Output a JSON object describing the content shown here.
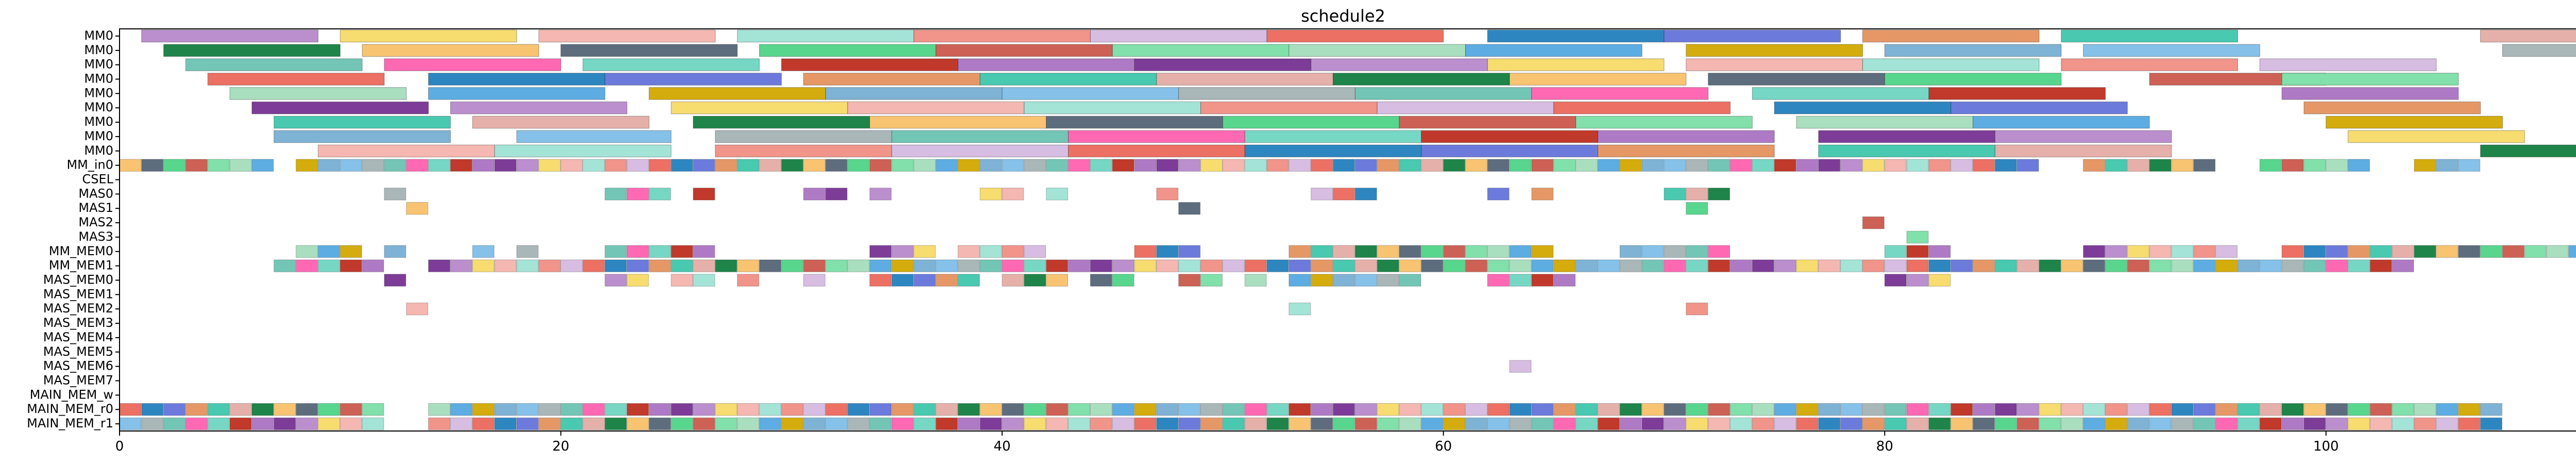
{
  "chart_data": {
    "type": "gantt",
    "title": "schedule2",
    "xlabel": "",
    "ylabel": "",
    "xlim": [
      0,
      116
    ],
    "x_ticks": [
      0,
      20,
      40,
      60,
      80,
      100
    ],
    "grid": false,
    "legend": "none",
    "rows": [
      "MM0",
      "MM0",
      "MM0",
      "MM0",
      "MM0",
      "MM0",
      "MM0",
      "MM0",
      "MM0",
      "MM_in0",
      "CSEL",
      "MAS0",
      "MAS1",
      "MAS2",
      "MAS3",
      "MM_MEM0",
      "MM_MEM1",
      "MAS_MEM0",
      "MAS_MEM1",
      "MAS_MEM2",
      "MAS_MEM3",
      "MAS_MEM4",
      "MAS_MEM5",
      "MAS_MEM6",
      "MAS_MEM7",
      "MAIN_MEM_w",
      "MAIN_MEM_r0",
      "MAIN_MEM_r1"
    ],
    "palette": [
      "#7fb3d5",
      "#f1948a",
      "#82e0aa",
      "#bb8fce",
      "#f8c471",
      "#76d7c4",
      "#e59866",
      "#85c1e9",
      "#d7bde2",
      "#a9dfbf",
      "#f7dc6f",
      "#5d6d7e",
      "#c0392b",
      "#48c9b0",
      "#aab7b8",
      "#ec7063",
      "#5dade2",
      "#f5b7b1",
      "#58d68d",
      "#af7ac5",
      "#e6b0aa",
      "#73c6b6",
      "#2e86c1",
      "#d4ac0d",
      "#a3e4d7",
      "#cd6155",
      "#7d3c98",
      "#1e8449",
      "#ff69b4",
      "#6c7bdb"
    ],
    "bars": [
      {
        "row": 0,
        "start": 1,
        "end": 9
      },
      {
        "row": 0,
        "start": 10,
        "end": 18
      },
      {
        "row": 0,
        "start": 19,
        "end": 27
      },
      {
        "row": 0,
        "start": 28,
        "end": 36
      },
      {
        "row": 0,
        "start": 36,
        "end": 44
      },
      {
        "row": 0,
        "start": 44,
        "end": 52
      },
      {
        "row": 0,
        "start": 52,
        "end": 60
      },
      {
        "row": 0,
        "start": 62,
        "end": 70
      },
      {
        "row": 0,
        "start": 70,
        "end": 78
      },
      {
        "row": 0,
        "start": 79,
        "end": 87
      },
      {
        "row": 0,
        "start": 88,
        "end": 96
      },
      {
        "row": 0,
        "start": 107,
        "end": 116
      },
      {
        "row": 1,
        "start": 2,
        "end": 10
      },
      {
        "row": 1,
        "start": 11,
        "end": 19
      },
      {
        "row": 1,
        "start": 20,
        "end": 28
      },
      {
        "row": 1,
        "start": 29,
        "end": 37
      },
      {
        "row": 1,
        "start": 37,
        "end": 45
      },
      {
        "row": 1,
        "start": 45,
        "end": 53
      },
      {
        "row": 1,
        "start": 53,
        "end": 61
      },
      {
        "row": 1,
        "start": 61,
        "end": 69
      },
      {
        "row": 1,
        "start": 71,
        "end": 79
      },
      {
        "row": 1,
        "start": 80,
        "end": 88
      },
      {
        "row": 1,
        "start": 89,
        "end": 97
      },
      {
        "row": 1,
        "start": 108,
        "end": 116
      },
      {
        "row": 2,
        "start": 3,
        "end": 11
      },
      {
        "row": 2,
        "start": 12,
        "end": 20
      },
      {
        "row": 2,
        "start": 21,
        "end": 29
      },
      {
        "row": 2,
        "start": 30,
        "end": 38
      },
      {
        "row": 2,
        "start": 38,
        "end": 46
      },
      {
        "row": 2,
        "start": 46,
        "end": 54
      },
      {
        "row": 2,
        "start": 54,
        "end": 62
      },
      {
        "row": 2,
        "start": 62,
        "end": 70
      },
      {
        "row": 2,
        "start": 71,
        "end": 79
      },
      {
        "row": 2,
        "start": 79,
        "end": 87
      },
      {
        "row": 2,
        "start": 88,
        "end": 96
      },
      {
        "row": 2,
        "start": 97,
        "end": 105
      },
      {
        "row": 3,
        "start": 4,
        "end": 12
      },
      {
        "row": 3,
        "start": 14,
        "end": 22
      },
      {
        "row": 3,
        "start": 22,
        "end": 30
      },
      {
        "row": 3,
        "start": 31,
        "end": 39
      },
      {
        "row": 3,
        "start": 39,
        "end": 47
      },
      {
        "row": 3,
        "start": 47,
        "end": 55
      },
      {
        "row": 3,
        "start": 55,
        "end": 63
      },
      {
        "row": 3,
        "start": 63,
        "end": 71
      },
      {
        "row": 3,
        "start": 72,
        "end": 80
      },
      {
        "row": 3,
        "start": 80,
        "end": 88
      },
      {
        "row": 3,
        "start": 92,
        "end": 100
      },
      {
        "row": 3,
        "start": 98,
        "end": 106
      },
      {
        "row": 4,
        "start": 5,
        "end": 13
      },
      {
        "row": 4,
        "start": 14,
        "end": 22
      },
      {
        "row": 4,
        "start": 24,
        "end": 32
      },
      {
        "row": 4,
        "start": 32,
        "end": 40
      },
      {
        "row": 4,
        "start": 40,
        "end": 48
      },
      {
        "row": 4,
        "start": 48,
        "end": 56
      },
      {
        "row": 4,
        "start": 56,
        "end": 64
      },
      {
        "row": 4,
        "start": 64,
        "end": 72
      },
      {
        "row": 4,
        "start": 74,
        "end": 82
      },
      {
        "row": 4,
        "start": 82,
        "end": 90
      },
      {
        "row": 4,
        "start": 98,
        "end": 106
      },
      {
        "row": 5,
        "start": 6,
        "end": 14
      },
      {
        "row": 5,
        "start": 15,
        "end": 23
      },
      {
        "row": 5,
        "start": 25,
        "end": 33
      },
      {
        "row": 5,
        "start": 33,
        "end": 41
      },
      {
        "row": 5,
        "start": 41,
        "end": 49
      },
      {
        "row": 5,
        "start": 49,
        "end": 57
      },
      {
        "row": 5,
        "start": 57,
        "end": 65
      },
      {
        "row": 5,
        "start": 65,
        "end": 73
      },
      {
        "row": 5,
        "start": 75,
        "end": 83
      },
      {
        "row": 5,
        "start": 83,
        "end": 91
      },
      {
        "row": 5,
        "start": 99,
        "end": 107
      },
      {
        "row": 6,
        "start": 7,
        "end": 15
      },
      {
        "row": 6,
        "start": 16,
        "end": 24
      },
      {
        "row": 6,
        "start": 26,
        "end": 34
      },
      {
        "row": 6,
        "start": 34,
        "end": 42
      },
      {
        "row": 6,
        "start": 42,
        "end": 50
      },
      {
        "row": 6,
        "start": 50,
        "end": 58
      },
      {
        "row": 6,
        "start": 58,
        "end": 66
      },
      {
        "row": 6,
        "start": 66,
        "end": 74
      },
      {
        "row": 6,
        "start": 76,
        "end": 84
      },
      {
        "row": 6,
        "start": 84,
        "end": 92
      },
      {
        "row": 6,
        "start": 100,
        "end": 108
      },
      {
        "row": 7,
        "start": 7,
        "end": 15
      },
      {
        "row": 7,
        "start": 18,
        "end": 25
      },
      {
        "row": 7,
        "start": 27,
        "end": 35
      },
      {
        "row": 7,
        "start": 35,
        "end": 43
      },
      {
        "row": 7,
        "start": 43,
        "end": 51
      },
      {
        "row": 7,
        "start": 51,
        "end": 59
      },
      {
        "row": 7,
        "start": 59,
        "end": 67
      },
      {
        "row": 7,
        "start": 67,
        "end": 75
      },
      {
        "row": 7,
        "start": 77,
        "end": 85
      },
      {
        "row": 7,
        "start": 85,
        "end": 93
      },
      {
        "row": 7,
        "start": 101,
        "end": 109
      },
      {
        "row": 8,
        "start": 9,
        "end": 17
      },
      {
        "row": 8,
        "start": 17,
        "end": 25
      },
      {
        "row": 8,
        "start": 27,
        "end": 35
      },
      {
        "row": 8,
        "start": 35,
        "end": 43
      },
      {
        "row": 8,
        "start": 43,
        "end": 51
      },
      {
        "row": 8,
        "start": 51,
        "end": 59
      },
      {
        "row": 8,
        "start": 59,
        "end": 67
      },
      {
        "row": 8,
        "start": 67,
        "end": 75
      },
      {
        "row": 8,
        "start": 77,
        "end": 85
      },
      {
        "row": 8,
        "start": 85,
        "end": 93
      },
      {
        "row": 8,
        "start": 107,
        "end": 115
      }
    ],
    "cells": [
      {
        "row": 9,
        "x": [
          0,
          1,
          2,
          3,
          4,
          5,
          6,
          8,
          9,
          10,
          11,
          12,
          13,
          14,
          15,
          16,
          17,
          18,
          19,
          20,
          21,
          22,
          23,
          24,
          25,
          26,
          27,
          28,
          29,
          30,
          31,
          32,
          33,
          34,
          35,
          36,
          37,
          38,
          39,
          40,
          41,
          42,
          43,
          44,
          45,
          46,
          47,
          48,
          49,
          50,
          51,
          52,
          53,
          54,
          55,
          56,
          57,
          58,
          59,
          60,
          61,
          62,
          63,
          64,
          65,
          66,
          67,
          68,
          69,
          70,
          71,
          72,
          73,
          74,
          75,
          76,
          77,
          78,
          79,
          80,
          81,
          82,
          83,
          84,
          85,
          86,
          89,
          90,
          91,
          92,
          93,
          94,
          97,
          98,
          99,
          100,
          101,
          104,
          105,
          106
        ]
      },
      {
        "row": 11,
        "x": [
          12,
          22,
          23,
          24,
          26,
          31,
          32,
          34,
          39,
          40,
          42,
          47,
          54,
          55,
          56,
          62,
          64,
          70,
          71,
          72
        ]
      },
      {
        "row": 12,
        "x": [
          13,
          48,
          71
        ]
      },
      {
        "row": 13,
        "x": [
          79
        ]
      },
      {
        "row": 14,
        "x": [
          81
        ]
      },
      {
        "row": 15,
        "x": [
          8,
          9,
          10,
          12,
          16,
          18,
          22,
          23,
          24,
          25,
          26,
          34,
          35,
          36,
          38,
          39,
          40,
          41,
          46,
          47,
          48,
          53,
          54,
          55,
          56,
          57,
          58,
          59,
          60,
          61,
          62,
          63,
          64,
          68,
          69,
          70,
          71,
          72,
          80,
          81,
          82,
          89,
          90,
          91,
          92,
          93,
          94,
          95,
          98,
          99,
          100,
          101,
          102,
          103,
          104,
          105,
          106,
          107,
          108,
          109,
          110,
          111,
          112,
          113,
          114,
          115
        ]
      },
      {
        "row": 16,
        "x": [
          7,
          8,
          9,
          10,
          11,
          14,
          15,
          16,
          17,
          18,
          19,
          20,
          21,
          22,
          23,
          24,
          25,
          26,
          27,
          28,
          29,
          30,
          31,
          32,
          33,
          34,
          35,
          36,
          37,
          38,
          39,
          40,
          41,
          42,
          43,
          44,
          45,
          46,
          47,
          48,
          49,
          50,
          51,
          52,
          53,
          54,
          55,
          56,
          57,
          58,
          59,
          60,
          61,
          62,
          63,
          64,
          65,
          66,
          67,
          68,
          69,
          70,
          71,
          72,
          73,
          74,
          75,
          76,
          77,
          78,
          79,
          80,
          81,
          82,
          83,
          84,
          85,
          86,
          87,
          88,
          89,
          90,
          91,
          92,
          93,
          94,
          95,
          96,
          97,
          98,
          99,
          100,
          101,
          102,
          103
        ]
      },
      {
        "row": 17,
        "x": [
          12,
          22,
          23,
          25,
          26,
          28,
          31,
          34,
          35,
          36,
          37,
          38,
          40,
          41,
          42,
          44,
          45,
          48,
          49,
          51,
          53,
          54,
          55,
          56,
          57,
          58,
          62,
          63,
          64,
          65,
          80,
          81,
          82
        ]
      },
      {
        "row": 19,
        "x": [
          13,
          53,
          71
        ]
      },
      {
        "row": 23,
        "x": [
          63
        ]
      },
      {
        "row": 26,
        "x": [
          0,
          1,
          2,
          3,
          4,
          5,
          6,
          7,
          8,
          9,
          10,
          11,
          14,
          15,
          16,
          17,
          18,
          19,
          20,
          21,
          22,
          23,
          24,
          25,
          26,
          27,
          28,
          29,
          30,
          31,
          32,
          33,
          34,
          35,
          36,
          37,
          38,
          39,
          40,
          41,
          42,
          43,
          44,
          45,
          46,
          47,
          48,
          49,
          50,
          51,
          52,
          53,
          54,
          55,
          56,
          57,
          58,
          59,
          60,
          61,
          62,
          63,
          64,
          65,
          66,
          67,
          68,
          69,
          70,
          71,
          72,
          73,
          74,
          75,
          76,
          77,
          78,
          79,
          80,
          81,
          82,
          83,
          84,
          85,
          86,
          87,
          88,
          89,
          90,
          91,
          92,
          93,
          94,
          95,
          96,
          97,
          98,
          99,
          100,
          101,
          102,
          103,
          104,
          105,
          106,
          107
        ]
      },
      {
        "row": 27,
        "x": [
          0,
          1,
          2,
          3,
          4,
          5,
          6,
          7,
          8,
          9,
          10,
          11,
          14,
          15,
          16,
          17,
          18,
          19,
          20,
          21,
          22,
          23,
          24,
          25,
          26,
          27,
          28,
          29,
          30,
          31,
          32,
          33,
          34,
          35,
          36,
          37,
          38,
          39,
          40,
          41,
          42,
          43,
          44,
          45,
          46,
          47,
          48,
          49,
          50,
          51,
          52,
          53,
          54,
          55,
          56,
          57,
          58,
          59,
          60,
          61,
          62,
          63,
          64,
          65,
          66,
          67,
          68,
          69,
          70,
          71,
          72,
          73,
          74,
          75,
          76,
          77,
          78,
          79,
          80,
          81,
          82,
          83,
          84,
          85,
          86,
          87,
          88,
          89,
          90,
          91,
          92,
          93,
          94,
          95,
          96,
          97,
          98,
          99,
          100,
          101,
          102,
          103,
          104,
          105,
          106,
          107
        ]
      }
    ]
  }
}
